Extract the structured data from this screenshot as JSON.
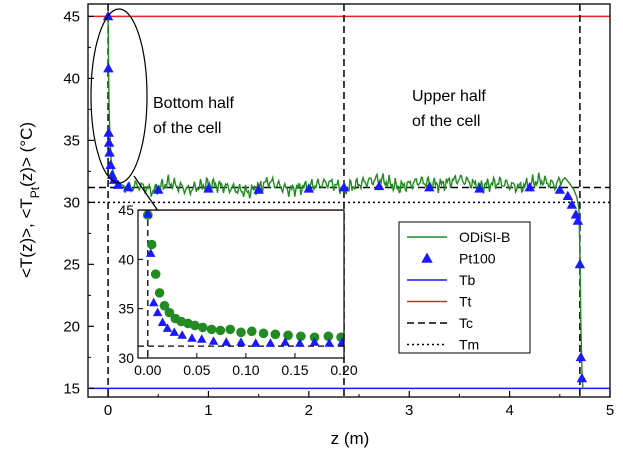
{
  "chart_data": {
    "type": "line",
    "xlabel": "z (m)",
    "ylabel": "<T(z)>, <T_Pt(z)> (°C)",
    "ylabel_main": "<T(z)>, <T",
    "ylabel_sub": "Pt",
    "ylabel_tail": "(z)> (°C)",
    "xlim": [
      -0.2,
      5.0
    ],
    "ylim": [
      14.3,
      46.0
    ],
    "xticks": [
      0,
      1,
      2,
      3,
      4,
      5
    ],
    "yticks": [
      15,
      20,
      25,
      30,
      35,
      40,
      45
    ],
    "grid": false,
    "legend_position": "lower-right",
    "annotations": [
      "Bottom half",
      "of the cell",
      "Upper half",
      "of the cell"
    ],
    "reference_lines": {
      "Tb": 15.0,
      "Tt": 45.0,
      "Tc": 31.2,
      "Tm": 30.0,
      "z_mid": 2.35,
      "z_bottom": 0.0,
      "z_top": 4.7
    },
    "series": [
      {
        "name": "ODiSI-B",
        "color": "#228B22",
        "x": [
          0.0,
          0.005,
          0.01,
          0.02,
          0.03,
          0.05,
          0.08,
          0.12,
          0.2,
          0.3,
          0.45,
          0.6,
          0.8,
          1.0,
          1.2,
          1.4,
          1.6,
          1.8,
          2.0,
          2.2,
          2.35,
          2.5,
          2.7,
          2.9,
          3.1,
          3.3,
          3.5,
          3.7,
          3.9,
          4.1,
          4.3,
          4.45,
          4.55,
          4.6,
          4.64,
          4.67,
          4.69,
          4.7,
          4.71,
          4.72,
          4.73
        ],
        "y": [
          45.0,
          41.0,
          37.5,
          35.0,
          33.5,
          32.5,
          31.8,
          31.5,
          31.1,
          31.4,
          30.9,
          31.6,
          31.0,
          31.5,
          31.2,
          30.8,
          31.7,
          31.0,
          31.3,
          31.6,
          31.1,
          31.5,
          31.9,
          31.2,
          31.7,
          31.4,
          31.9,
          31.3,
          31.6,
          31.2,
          31.8,
          31.4,
          32.0,
          31.5,
          31.0,
          30.4,
          29.5,
          26.0,
          20.0,
          16.5,
          15.0
        ]
      },
      {
        "name": "Pt100",
        "color": "#1a1aff",
        "x": [
          0.0,
          0.003,
          0.006,
          0.01,
          0.015,
          0.025,
          0.04,
          0.06,
          0.1,
          0.2,
          0.5,
          1.0,
          1.5,
          2.0,
          2.35,
          2.7,
          3.2,
          3.7,
          4.2,
          4.5,
          4.58,
          4.62,
          4.66,
          4.68,
          4.7,
          4.71,
          4.72
        ],
        "y": [
          45.0,
          40.8,
          35.6,
          34.8,
          34.0,
          33.0,
          32.2,
          31.8,
          31.4,
          31.2,
          31.0,
          31.1,
          31.0,
          31.1,
          31.2,
          31.3,
          31.2,
          31.1,
          31.2,
          31.0,
          30.5,
          29.8,
          29.0,
          28.5,
          25.0,
          17.5,
          15.8
        ]
      },
      {
        "name": "Tb",
        "color": "#1a1aff",
        "value": 15.0
      },
      {
        "name": "Tt",
        "color": "#e8201f",
        "value": 45.0
      },
      {
        "name": "Tc",
        "color": "#000000",
        "value": 31.2
      },
      {
        "name": "Tm",
        "color": "#000000",
        "value": 30.0
      }
    ],
    "inset": {
      "xlim": [
        -0.01,
        0.2
      ],
      "ylim": [
        30.0,
        45.0
      ],
      "xticks": [
        0.0,
        0.05,
        0.1,
        0.15,
        0.2
      ],
      "xtick_labels": [
        "0.00",
        "0.05",
        "0.10",
        "0.15",
        "0.20"
      ],
      "yticks": [
        30,
        35,
        40,
        45
      ],
      "reference_lines": {
        "Tt": 45.0,
        "Tc": 31.2,
        "z0": 0.0
      },
      "odisi_points": {
        "x": [
          0.0,
          0.004,
          0.008,
          0.012,
          0.017,
          0.022,
          0.028,
          0.034,
          0.041,
          0.048,
          0.056,
          0.065,
          0.074,
          0.084,
          0.095,
          0.106,
          0.118,
          0.13,
          0.143,
          0.156,
          0.17,
          0.184,
          0.197
        ],
        "y": [
          44.5,
          41.5,
          38.5,
          36.6,
          35.3,
          34.6,
          34.0,
          33.7,
          33.5,
          33.3,
          33.1,
          32.9,
          32.8,
          32.9,
          32.6,
          32.7,
          32.5,
          32.4,
          32.3,
          32.2,
          32.1,
          32.2,
          32.1
        ]
      },
      "pt100_points": {
        "x": [
          0.0,
          0.003,
          0.006,
          0.01,
          0.015,
          0.02,
          0.027,
          0.035,
          0.045,
          0.055,
          0.067,
          0.08,
          0.095,
          0.11,
          0.125,
          0.14,
          0.155,
          0.17,
          0.185,
          0.198
        ],
        "y": [
          44.6,
          40.6,
          35.6,
          34.6,
          33.6,
          33.0,
          32.6,
          32.3,
          32.0,
          31.9,
          31.7,
          31.6,
          31.6,
          31.5,
          31.5,
          31.6,
          31.5,
          31.6,
          31.5,
          31.6
        ]
      }
    }
  }
}
